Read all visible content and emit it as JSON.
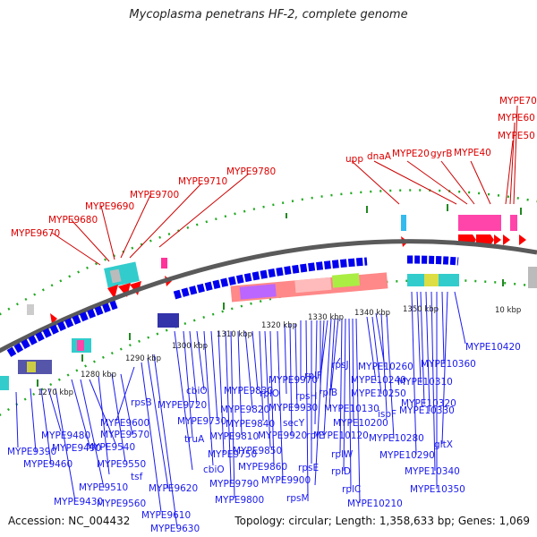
{
  "title": "Mycoplasma penetrans HF-2, complete genome",
  "footer": {
    "accession": "Accession: NC_004432",
    "summary": "Topology: circular; Length: 1,358,633 bp; Genes: 1,069"
  },
  "colors": {
    "top_labels": "#dd0000",
    "bottom_labels": "#1a1aee",
    "forward_genes": "#ff0000",
    "reverse_genes": "#0000ff",
    "backbone": "#888888",
    "ticks": "#228822"
  },
  "ticks": [
    "1270 kbp",
    "1280 kbp",
    "1290 kbp",
    "1300 kbp",
    "1310 kbp",
    "1320 kbp",
    "1330 kbp",
    "1340 kbp",
    "1350 kbp",
    "10 kbp"
  ],
  "top_labels": [
    "MYPE9670",
    "MYPE9680",
    "MYPE9690",
    "MYPE9700",
    "MYPE9710",
    "MYPE9780",
    "upp",
    "dnaA",
    "MYPE20",
    "gyrB",
    "MYPE40",
    "MYPE50",
    "MYPE60",
    "MYPE70"
  ],
  "bottom_labels": [
    "MYPE9390",
    "MYPE9460",
    "MYPE9480",
    "MYPE9490",
    "MYPE9430",
    "MYPE9510",
    "MYPE9540",
    "MYPE9550",
    "MYPE9560",
    "MYPE9570",
    "MYPE9600",
    "tsf",
    "rpsB",
    "MYPE9610",
    "MYPE9620",
    "MYPE9630",
    "truA",
    "MYPE9720",
    "cbiO",
    "MYPE9730",
    "cbiO",
    "MYPE9750",
    "MYPE9790",
    "MYPE9800",
    "MYPE9810",
    "MYPE9820",
    "MYPE9830",
    "MYPE9840",
    "MYPE9850",
    "MYPE9860",
    "MYPE9900",
    "rplO",
    "MYPE9920",
    "MYPE9930",
    "MYPE9970",
    "rpsM",
    "rpsE",
    "secY",
    "rpsH",
    "rplF",
    "rplE",
    "MYPE10120",
    "MYPE10130",
    "rplB",
    "rplW",
    "rplD",
    "rplC",
    "MYPE10200",
    "MYPE10210",
    "rpsJ",
    "MYPE10240",
    "MYPE10250",
    "MYPE10260",
    "ispF",
    "MYPE10280",
    "MYPE10290",
    "MYPE10310",
    "MYPE10320",
    "MYPE10330",
    "MYPE10340",
    "MYPE10350",
    "MYPE10360",
    "gltX",
    "MYPE10420"
  ]
}
